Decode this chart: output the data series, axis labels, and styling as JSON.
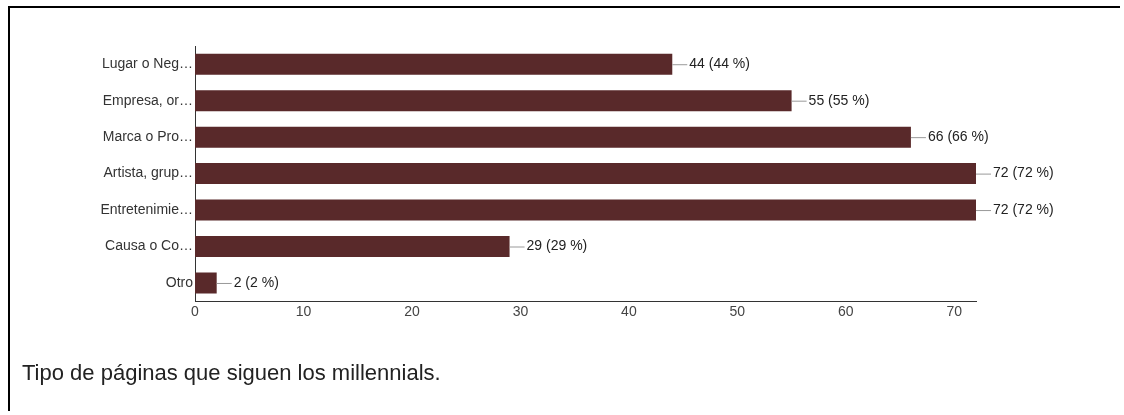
{
  "chart_data": {
    "type": "bar",
    "orientation": "horizontal",
    "title": "Tipo de páginas que siguen los millennials.",
    "categories": [
      "Lugar o Neg…",
      "Empresa, or…",
      "Marca o Pro…",
      "Artista, grup…",
      "Entretenimie…",
      "Causa o Co…",
      "Otro"
    ],
    "values": [
      44,
      55,
      66,
      72,
      72,
      29,
      2
    ],
    "value_labels": [
      "44 (44 %)",
      "55 (55 %)",
      "66 (66 %)",
      "72 (72 %)",
      "72 (72 %)",
      "29 (29 %)",
      "2 (2 %)"
    ],
    "color": "#59292a",
    "xlim": [
      0,
      72
    ],
    "xticks": [
      0,
      10,
      20,
      30,
      40,
      50,
      60,
      70
    ],
    "grid": false,
    "legend": false
  }
}
